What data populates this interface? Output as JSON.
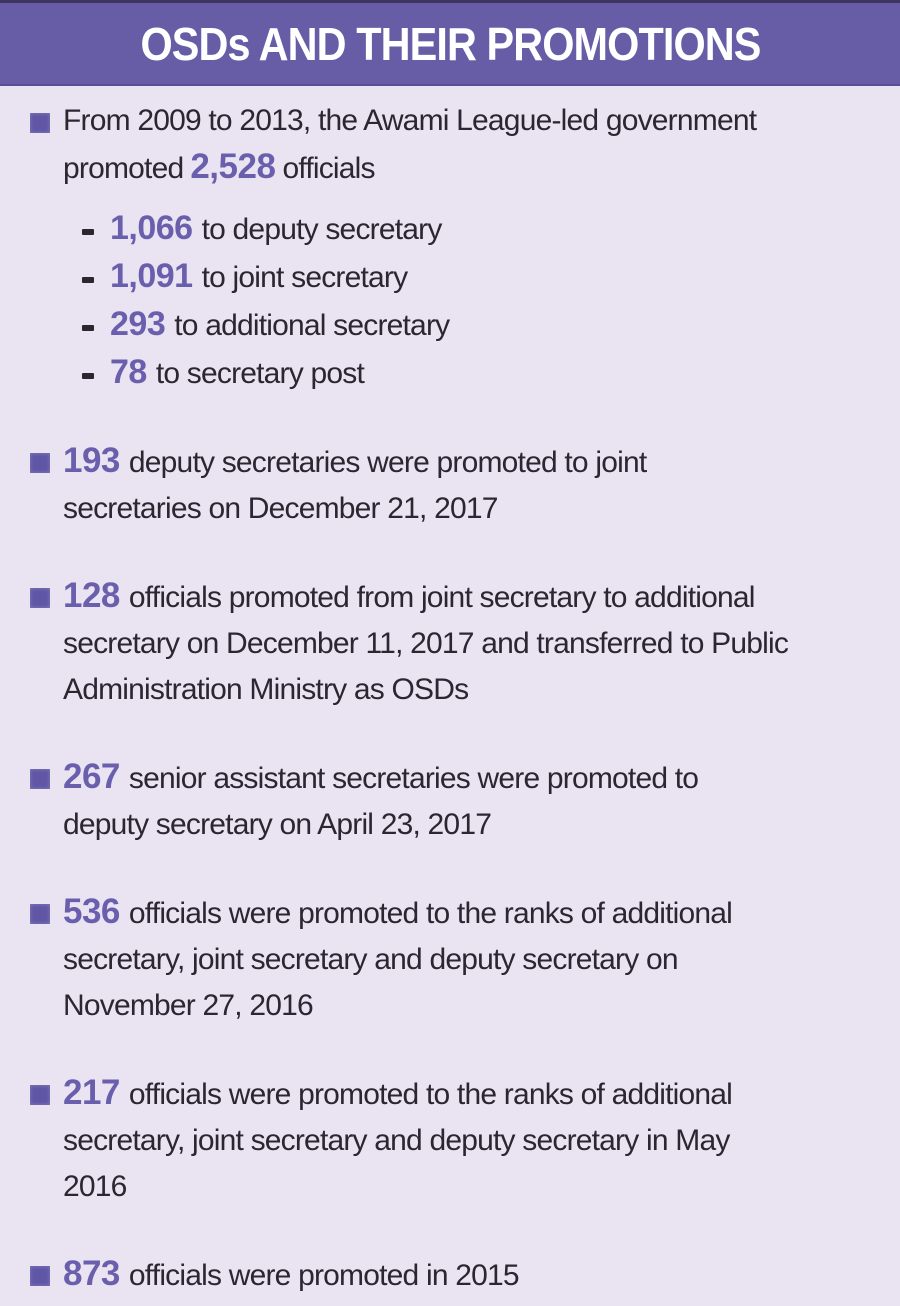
{
  "header": {
    "title": "OSDs AND THEIR PROMOTIONS"
  },
  "colors": {
    "header_band": "#675DA7",
    "background": "#EAE3F1",
    "accent_number": "#6A5FAD",
    "body_text": "#2A2731",
    "bullet_square": "#5F56A5"
  },
  "items": [
    {
      "pre": "From 2009 to 2013, the Awami League-led government\npromoted",
      "num": "2,528",
      "post": "officials",
      "subs": [
        {
          "num": "1,066",
          "post": "to deputy secretary"
        },
        {
          "num": "1,091",
          "post": "to joint secretary"
        },
        {
          "num": "293",
          "post": "to additional secretary"
        },
        {
          "num": "78",
          "post": "to secretary post"
        }
      ]
    },
    {
      "num": "193",
      "post": "deputy secretaries were promoted to joint\nsecretaries on December 21, 2017"
    },
    {
      "num": "128",
      "post": "officials promoted from joint secretary to additional\nsecretary on December 11, 2017 and transferred to Public\nAdministration Ministry as OSDs"
    },
    {
      "num": "267",
      "post": "senior assistant secretaries were promoted to\ndeputy secretary on April 23, 2017"
    },
    {
      "num": "536",
      "post": "officials were promoted to the ranks of additional\nsecretary, joint secretary and deputy secretary on\nNovember 27, 2016"
    },
    {
      "num": "217",
      "post": "officials were promoted to the ranks of additional\nsecretary, joint secretary and deputy secretary in May\n2016"
    },
    {
      "num": "873",
      "post": "officials were promoted in 2015"
    }
  ]
}
